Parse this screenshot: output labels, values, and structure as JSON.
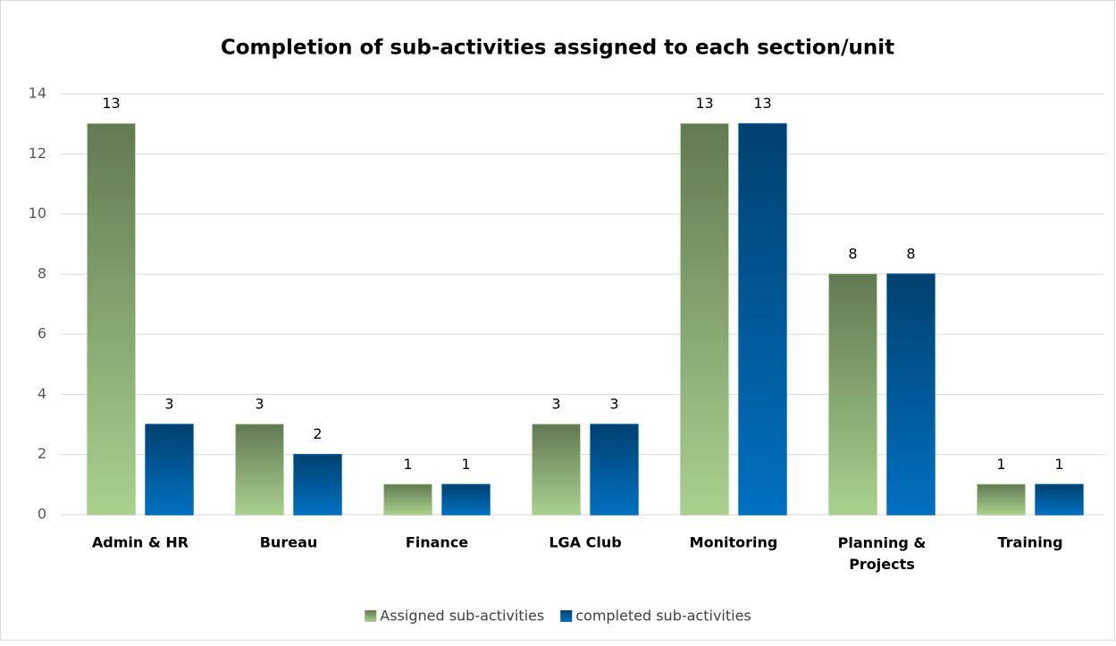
{
  "chart_data": {
    "type": "bar",
    "title": "Completion of sub-activities assigned to each section/unit",
    "categories": [
      "Admin & HR",
      "Bureau",
      "Finance",
      "LGA Club",
      "Monitoring",
      "Planning & Projects",
      "Training"
    ],
    "series": [
      {
        "name": "Assigned sub-activities",
        "color": "#a9d18e",
        "values": [
          13,
          3,
          1,
          3,
          13,
          8,
          1
        ]
      },
      {
        "name": "completed sub-activities",
        "color": "#0070c0",
        "values": [
          3,
          2,
          1,
          3,
          13,
          8,
          1
        ]
      }
    ],
    "ylim": [
      0,
      14
    ],
    "yticks": [
      0,
      2,
      4,
      6,
      8,
      10,
      12,
      14
    ],
    "grid": true,
    "legend": "bottom"
  }
}
